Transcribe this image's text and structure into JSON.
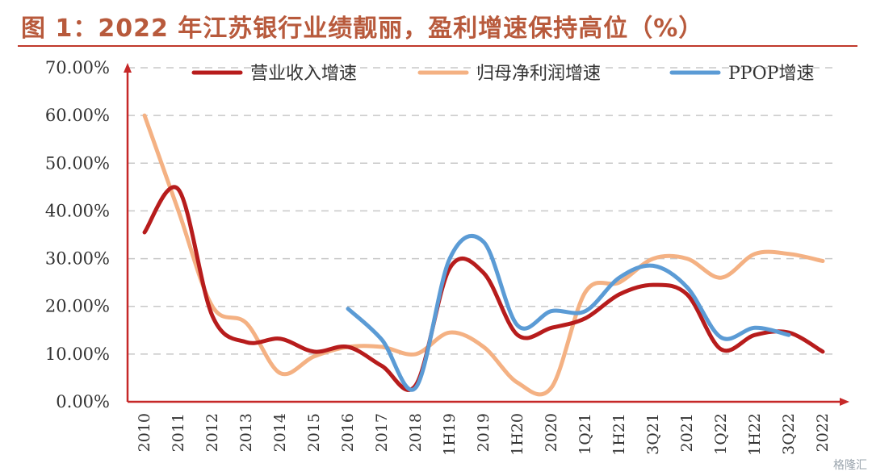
{
  "title": "图 1：2022 年江苏银行业绩靓丽，盈利增速保持高位（%）",
  "watermark": "格隆汇",
  "colors": {
    "title": "#b85a3c",
    "rule": "#c0392b",
    "axis": "#c62828",
    "grid": "#c8c8c8"
  },
  "chart_data": {
    "type": "line",
    "title": "",
    "xlabel": "",
    "ylabel": "",
    "ylim": [
      0,
      70
    ],
    "yticks": [
      "0.00%",
      "10.00%",
      "20.00%",
      "30.00%",
      "40.00%",
      "50.00%",
      "60.00%",
      "70.00%"
    ],
    "y_tick_values": [
      0,
      10,
      20,
      30,
      40,
      50,
      60,
      70
    ],
    "categories": [
      "2010",
      "2011",
      "2012",
      "2013",
      "2014",
      "2015",
      "2016",
      "2017",
      "2018",
      "1H19",
      "2019",
      "1H20",
      "2020",
      "1Q21",
      "1H21",
      "3Q21",
      "2021",
      "1Q22",
      "1H22",
      "3Q22",
      "2022"
    ],
    "grid": true,
    "legend_position": "top",
    "series": [
      {
        "name": "营业收入增速",
        "color": "#b71c1c",
        "values": [
          35.5,
          44.5,
          18.0,
          12.5,
          13.2,
          10.5,
          11.5,
          7.5,
          3.5,
          28.0,
          27.0,
          14.0,
          15.5,
          17.5,
          22.5,
          24.5,
          22.5,
          11.0,
          14.0,
          14.5,
          10.5
        ]
      },
      {
        "name": "归母净利润增速",
        "color": "#f4b183",
        "values": [
          60.0,
          40.0,
          20.0,
          16.5,
          6.0,
          9.5,
          11.5,
          11.5,
          10.0,
          14.5,
          11.5,
          4.0,
          3.0,
          23.0,
          25.0,
          30.0,
          30.0,
          26.0,
          31.0,
          31.0,
          29.5
        ]
      },
      {
        "name": "PPOP增速",
        "color": "#5b9bd5",
        "values": [
          null,
          null,
          null,
          null,
          null,
          null,
          19.5,
          13.0,
          3.0,
          30.0,
          33.5,
          16.0,
          19.0,
          19.0,
          26.0,
          28.5,
          24.0,
          13.5,
          15.5,
          14.0,
          null
        ]
      }
    ]
  }
}
